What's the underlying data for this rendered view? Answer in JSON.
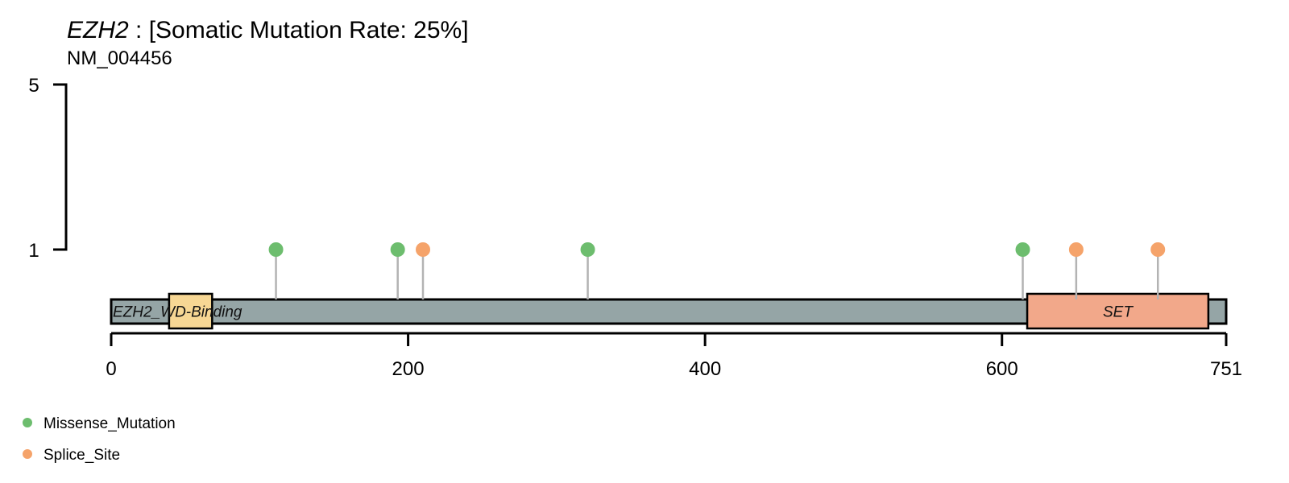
{
  "header": {
    "gene": "EZH2",
    "rate_text": " : [Somatic Mutation Rate: 25%]",
    "transcript": "NM_004456"
  },
  "colors": {
    "Missense_Mutation": "#6dbd6e",
    "Splice_Site": "#f5a36a",
    "protein_backbone": "#95a5a6",
    "stem": "#b3b3b3"
  },
  "chart_data": {
    "type": "lollipop",
    "protein_length": 751,
    "x_ticks": [
      0,
      200,
      400,
      600,
      751
    ],
    "y_ticks": [
      1,
      5
    ],
    "domains": [
      {
        "name": "EZH2_WD-Binding",
        "start": 39,
        "end": 68,
        "color": "#f7d794"
      },
      {
        "name": "SET",
        "start": 617,
        "end": 739,
        "color": "#f2a88a"
      }
    ],
    "mutations": [
      {
        "pos": 111,
        "count": 1,
        "type": "Missense_Mutation"
      },
      {
        "pos": 193,
        "count": 1,
        "type": "Missense_Mutation"
      },
      {
        "pos": 210,
        "count": 1,
        "type": "Splice_Site"
      },
      {
        "pos": 321,
        "count": 1,
        "type": "Missense_Mutation"
      },
      {
        "pos": 614,
        "count": 1,
        "type": "Missense_Mutation"
      },
      {
        "pos": 650,
        "count": 1,
        "type": "Splice_Site"
      },
      {
        "pos": 705,
        "count": 1,
        "type": "Splice_Site"
      }
    ],
    "legend": [
      "Missense_Mutation",
      "Splice_Site"
    ]
  }
}
